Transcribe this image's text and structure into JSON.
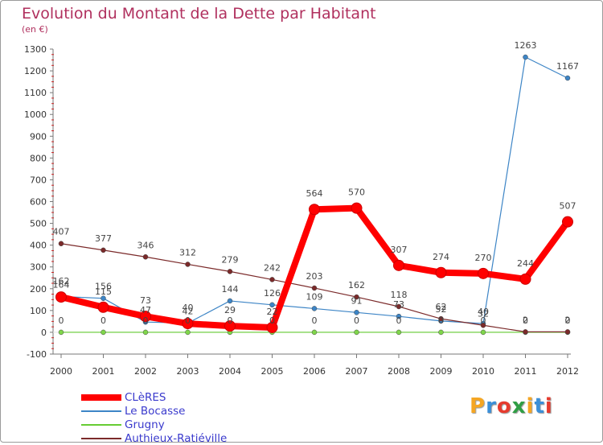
{
  "chart_data": {
    "type": "line",
    "title": "Evolution du Montant de la Dette par Habitant",
    "subtitle": "(en €)",
    "xlabel": "",
    "ylabel": "",
    "x": [
      "2000",
      "2001",
      "2002",
      "2003",
      "2004",
      "2005",
      "2006",
      "2007",
      "2008",
      "2009",
      "2010",
      "2011",
      "2012"
    ],
    "ylim": [
      -100,
      1300
    ],
    "yticks": [
      -100,
      0,
      100,
      200,
      300,
      400,
      500,
      600,
      700,
      800,
      900,
      1000,
      1100,
      1200,
      1300
    ],
    "grid": false,
    "legend_position": "bottom-left",
    "series": [
      {
        "name": "CLèRES",
        "color": "#ff0000",
        "values": [
          162,
          115,
          73,
          40,
          29,
          22,
          564,
          570,
          307,
          274,
          270,
          244,
          507
        ]
      },
      {
        "name": "Le Bocasse",
        "color": "#3d85c6",
        "values": [
          164,
          156,
          47,
          42,
          144,
          126,
          109,
          91,
          73,
          52,
          40,
          1263,
          1167
        ]
      },
      {
        "name": "Grugny",
        "color": "#66cc33",
        "values": [
          0,
          0,
          0,
          0,
          0,
          0,
          0,
          0,
          0,
          0,
          0,
          0,
          0
        ]
      },
      {
        "name": "Authieux-Ratiéville",
        "color": "#7b2a2a",
        "values": [
          407,
          377,
          346,
          312,
          279,
          242,
          203,
          162,
          118,
          62,
          32,
          2,
          2
        ]
      }
    ]
  },
  "logo": {
    "letters": [
      "P",
      "r",
      "o",
      "x",
      "i",
      "t",
      "i"
    ],
    "colors": [
      "#f5a623",
      "#3b8fd8",
      "#e63b2e",
      "#2f9e44",
      "#f5a623",
      "#3b8fd8",
      "#e63b2e"
    ]
  }
}
